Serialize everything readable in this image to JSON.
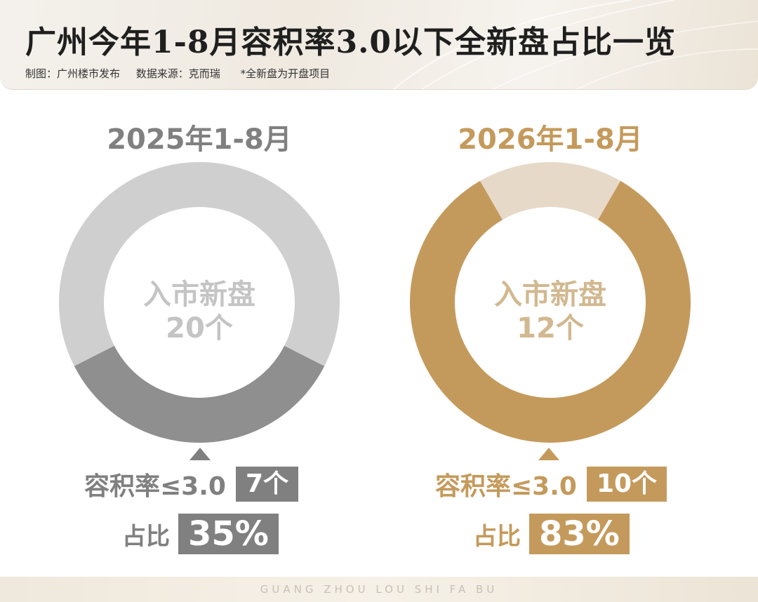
{
  "header": {
    "title": "广州今年1-8月容积率3.0以下全新盘占比一览",
    "producer": "制图：广州楼市发布",
    "source": "数据来源：克而瑞",
    "note": "*全新盘为开盘项目"
  },
  "chart_data": [
    {
      "type": "pie",
      "title": "2025年1-8月",
      "center_label": "入市新盘",
      "center_value": "20个",
      "total": 20,
      "slices": [
        {
          "label": "容积率≤3.0",
          "value": 7,
          "color": "#8f8f8f"
        },
        {
          "label": "",
          "value": 13,
          "color": "#cfcfcf"
        }
      ],
      "stat_label": "容积率≤3.0",
      "stat_value": "7个",
      "pct_label": "占比",
      "pct_value": "35%",
      "accent": "#808080"
    },
    {
      "type": "pie",
      "title": "2026年1-8月",
      "center_label": "入市新盘",
      "center_value": "12个",
      "total": 12,
      "slices": [
        {
          "label": "容积率≤3.0",
          "value": 10,
          "color": "#c49a5c"
        },
        {
          "label": "",
          "value": 2,
          "color": "#e6d9c8"
        }
      ],
      "stat_label": "容积率≤3.0",
      "stat_value": "10个",
      "pct_label": "占比",
      "pct_value": "83%",
      "accent": "#c49a5c"
    }
  ],
  "footer": {
    "text": "GUANG ZHOU LOU SHI FA BU"
  }
}
